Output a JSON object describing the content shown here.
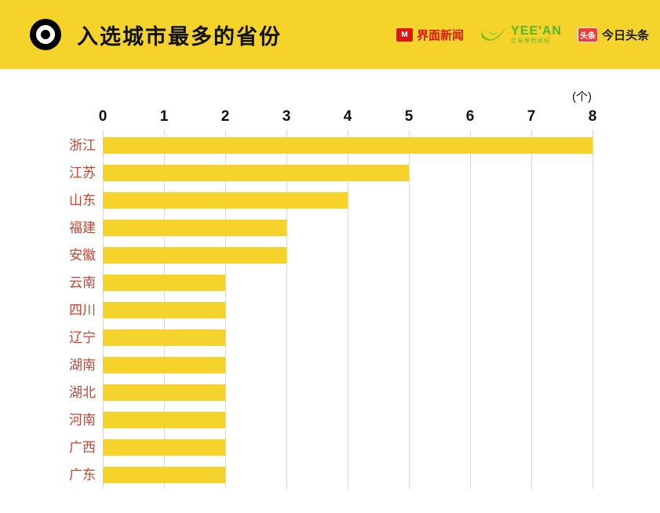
{
  "header": {
    "title": "入选城市最多的省份",
    "logos": {
      "jiemian": {
        "glyph": "M",
        "text": "界面新闻"
      },
      "yeean": {
        "text": "YEE'AN",
        "subtext": "亿安保险经纪"
      },
      "toutiao": {
        "badge": "头条",
        "text": "今日头条"
      }
    }
  },
  "colors": {
    "accent_yellow": "#F5D32B",
    "label_red": "#C8432F",
    "logo_red": "#E3120B",
    "logo_green": "#55B531",
    "gridline_gray": "#D8D8D8"
  },
  "chart_data": {
    "type": "bar",
    "orientation": "horizontal",
    "title": "入选城市最多的省份",
    "unit_label": "(个)",
    "categories": [
      "浙江",
      "江苏",
      "山东",
      "福建",
      "安徽",
      "云南",
      "四川",
      "辽宁",
      "湖南",
      "湖北",
      "河南",
      "广西",
      "广东"
    ],
    "values": [
      8,
      5,
      4,
      3,
      3,
      2,
      2,
      2,
      2,
      2,
      2,
      2,
      2
    ],
    "xlim": [
      0,
      8
    ],
    "xticks": [
      0,
      1,
      2,
      3,
      4,
      5,
      6,
      7,
      8
    ],
    "grid": true,
    "axis_position": "top",
    "legend": false
  }
}
